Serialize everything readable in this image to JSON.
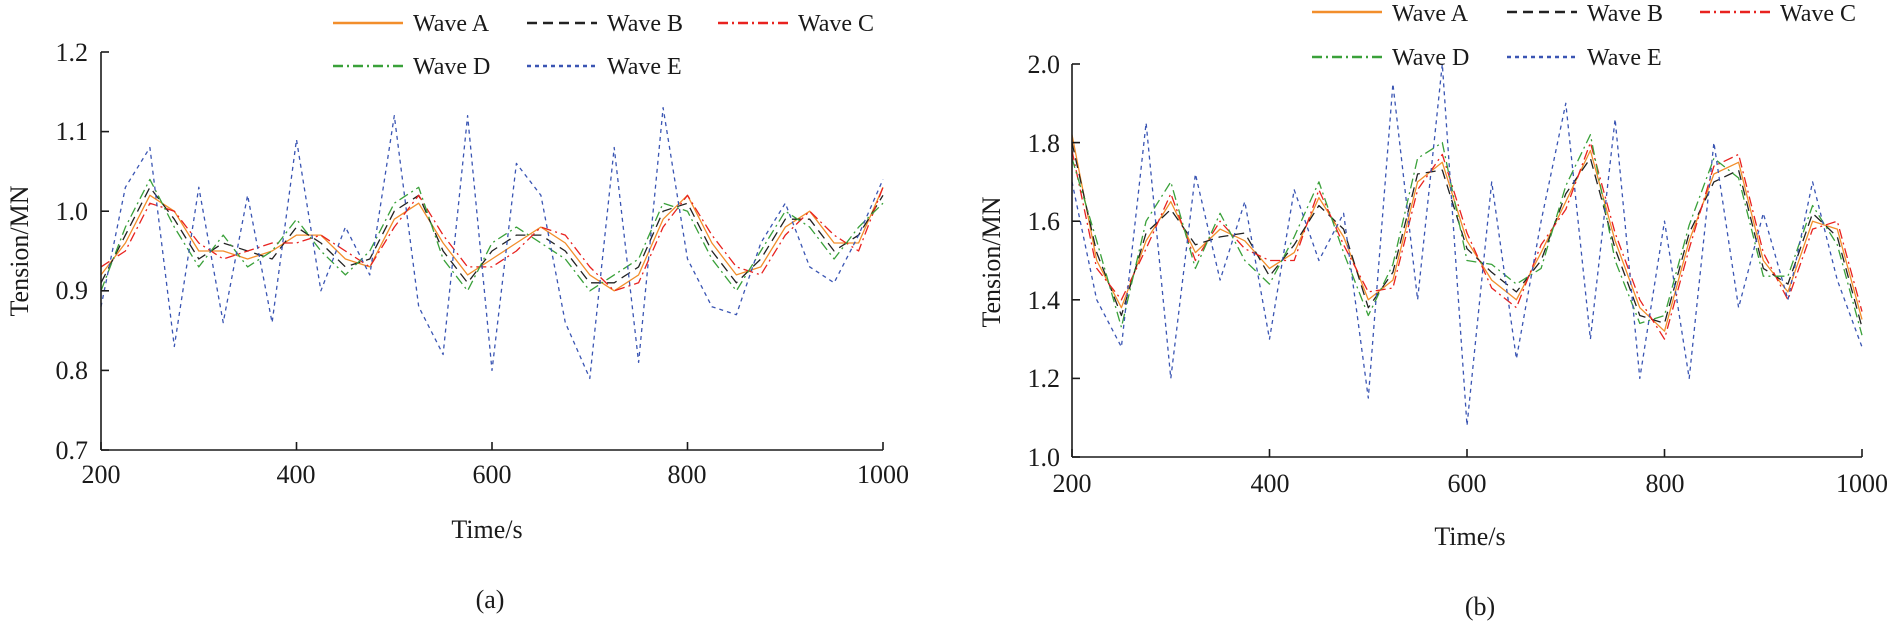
{
  "figure": {
    "legend_labels": [
      "Wave A",
      "Wave B",
      "Wave C",
      "Wave D",
      "Wave E"
    ],
    "series_colors": [
      "#f28e2b",
      "#222222",
      "#e8221f",
      "#3aa13a",
      "#3a55b3"
    ],
    "series_dash": [
      "",
      "10,6",
      "10,4,2,4",
      "10,4,2,4",
      "4,4"
    ]
  },
  "chart_data": [
    {
      "type": "line",
      "caption": "(a)",
      "title": "",
      "xlabel": "Time/s",
      "ylabel": "Tension/MN",
      "xlim": [
        200,
        1000
      ],
      "ylim": [
        0.7,
        1.2
      ],
      "xticks": [
        200,
        400,
        600,
        800,
        1000
      ],
      "yticks": [
        0.7,
        0.8,
        0.9,
        1.0,
        1.1,
        1.2
      ],
      "ytick_labels": [
        "0.7",
        "0.8",
        "0.9",
        "1.0",
        "1.1",
        "1.2"
      ],
      "legend": "top-right",
      "series": [
        {
          "name": "Wave A",
          "x": [
            200,
            225,
            250,
            275,
            300,
            325,
            350,
            375,
            400,
            425,
            450,
            475,
            500,
            525,
            550,
            575,
            600,
            625,
            650,
            675,
            700,
            725,
            750,
            775,
            800,
            825,
            850,
            875,
            900,
            925,
            950,
            975,
            1000
          ],
          "values": [
            0.92,
            0.96,
            1.02,
            1.0,
            0.95,
            0.95,
            0.94,
            0.95,
            0.97,
            0.97,
            0.94,
            0.93,
            0.99,
            1.01,
            0.96,
            0.92,
            0.94,
            0.96,
            0.98,
            0.96,
            0.92,
            0.9,
            0.92,
            0.99,
            1.02,
            0.96,
            0.92,
            0.93,
            0.98,
            1.0,
            0.96,
            0.96,
            1.03
          ]
        },
        {
          "name": "Wave B",
          "x": [
            200,
            225,
            250,
            275,
            300,
            325,
            350,
            375,
            400,
            425,
            450,
            475,
            500,
            525,
            550,
            575,
            600,
            625,
            650,
            675,
            700,
            725,
            750,
            775,
            800,
            825,
            850,
            875,
            900,
            925,
            950,
            975,
            1000
          ],
          "values": [
            0.91,
            0.97,
            1.03,
            0.99,
            0.94,
            0.96,
            0.95,
            0.94,
            0.98,
            0.96,
            0.93,
            0.94,
            1.0,
            1.02,
            0.95,
            0.91,
            0.95,
            0.97,
            0.97,
            0.95,
            0.91,
            0.91,
            0.93,
            1.0,
            1.01,
            0.95,
            0.91,
            0.94,
            0.99,
            0.99,
            0.95,
            0.97,
            1.02
          ]
        },
        {
          "name": "Wave C",
          "x": [
            200,
            225,
            250,
            275,
            300,
            325,
            350,
            375,
            400,
            425,
            450,
            475,
            500,
            525,
            550,
            575,
            600,
            625,
            650,
            675,
            700,
            725,
            750,
            775,
            800,
            825,
            850,
            875,
            900,
            925,
            950,
            975,
            1000
          ],
          "values": [
            0.93,
            0.95,
            1.01,
            1.0,
            0.96,
            0.94,
            0.95,
            0.96,
            0.96,
            0.97,
            0.95,
            0.93,
            0.98,
            1.02,
            0.97,
            0.93,
            0.93,
            0.95,
            0.98,
            0.97,
            0.93,
            0.9,
            0.91,
            0.98,
            1.02,
            0.97,
            0.93,
            0.92,
            0.97,
            1.0,
            0.97,
            0.95,
            1.03
          ]
        },
        {
          "name": "Wave D",
          "x": [
            200,
            225,
            250,
            275,
            300,
            325,
            350,
            375,
            400,
            425,
            450,
            475,
            500,
            525,
            550,
            575,
            600,
            625,
            650,
            675,
            700,
            725,
            750,
            775,
            800,
            825,
            850,
            875,
            900,
            925,
            950,
            975,
            1000
          ],
          "values": [
            0.9,
            0.98,
            1.04,
            0.98,
            0.93,
            0.97,
            0.93,
            0.95,
            0.99,
            0.95,
            0.92,
            0.95,
            1.01,
            1.03,
            0.94,
            0.9,
            0.96,
            0.98,
            0.96,
            0.94,
            0.9,
            0.92,
            0.94,
            1.01,
            1.0,
            0.94,
            0.9,
            0.95,
            1.0,
            0.98,
            0.94,
            0.98,
            1.01
          ]
        },
        {
          "name": "Wave E",
          "x": [
            200,
            225,
            250,
            275,
            300,
            325,
            350,
            375,
            400,
            425,
            450,
            475,
            500,
            525,
            550,
            575,
            600,
            625,
            650,
            675,
            700,
            725,
            750,
            775,
            800,
            825,
            850,
            875,
            900,
            925,
            950,
            975,
            1000
          ],
          "values": [
            0.88,
            1.03,
            1.08,
            0.83,
            1.03,
            0.86,
            1.02,
            0.86,
            1.09,
            0.9,
            0.98,
            0.92,
            1.12,
            0.88,
            0.82,
            1.12,
            0.8,
            1.06,
            1.02,
            0.86,
            0.79,
            1.08,
            0.81,
            1.13,
            0.94,
            0.88,
            0.87,
            0.96,
            1.01,
            0.93,
            0.91,
            0.97,
            1.04
          ]
        }
      ]
    },
    {
      "type": "line",
      "caption": "(b)",
      "title": "",
      "xlabel": "Time/s",
      "ylabel": "Tension/MN",
      "xlim": [
        200,
        1000
      ],
      "ylim": [
        1.0,
        2.0
      ],
      "xticks": [
        200,
        400,
        600,
        800,
        1000
      ],
      "yticks": [
        1.0,
        1.2,
        1.4,
        1.6,
        1.8,
        2.0
      ],
      "ytick_labels": [
        "1.0",
        "1.2",
        "1.4",
        "1.6",
        "1.8",
        "2.0"
      ],
      "legend": "top-right",
      "series": [
        {
          "name": "Wave A",
          "x": [
            200,
            225,
            250,
            275,
            300,
            325,
            350,
            375,
            400,
            425,
            450,
            475,
            500,
            525,
            550,
            575,
            600,
            625,
            650,
            675,
            700,
            725,
            750,
            775,
            800,
            825,
            850,
            875,
            900,
            925,
            950,
            975,
            1000
          ],
          "values": [
            1.82,
            1.5,
            1.38,
            1.55,
            1.65,
            1.52,
            1.58,
            1.55,
            1.48,
            1.52,
            1.66,
            1.56,
            1.4,
            1.45,
            1.7,
            1.75,
            1.55,
            1.45,
            1.4,
            1.52,
            1.65,
            1.78,
            1.55,
            1.38,
            1.32,
            1.55,
            1.72,
            1.75,
            1.5,
            1.42,
            1.6,
            1.58,
            1.35
          ]
        },
        {
          "name": "Wave B",
          "x": [
            200,
            225,
            250,
            275,
            300,
            325,
            350,
            375,
            400,
            425,
            450,
            475,
            500,
            525,
            550,
            575,
            600,
            625,
            650,
            675,
            700,
            725,
            750,
            775,
            800,
            825,
            850,
            875,
            900,
            925,
            950,
            975,
            1000
          ],
          "values": [
            1.8,
            1.52,
            1.36,
            1.57,
            1.63,
            1.54,
            1.56,
            1.57,
            1.46,
            1.54,
            1.64,
            1.58,
            1.38,
            1.47,
            1.72,
            1.73,
            1.53,
            1.47,
            1.42,
            1.5,
            1.67,
            1.76,
            1.53,
            1.36,
            1.34,
            1.57,
            1.7,
            1.73,
            1.48,
            1.44,
            1.62,
            1.56,
            1.33
          ]
        },
        {
          "name": "Wave C",
          "x": [
            200,
            225,
            250,
            275,
            300,
            325,
            350,
            375,
            400,
            425,
            450,
            475,
            500,
            525,
            550,
            575,
            600,
            625,
            650,
            675,
            700,
            725,
            750,
            775,
            800,
            825,
            850,
            875,
            900,
            925,
            950,
            975,
            1000
          ],
          "values": [
            1.78,
            1.48,
            1.4,
            1.53,
            1.67,
            1.5,
            1.6,
            1.53,
            1.5,
            1.5,
            1.68,
            1.54,
            1.42,
            1.43,
            1.68,
            1.77,
            1.57,
            1.43,
            1.38,
            1.54,
            1.63,
            1.8,
            1.57,
            1.4,
            1.3,
            1.53,
            1.74,
            1.77,
            1.52,
            1.4,
            1.58,
            1.6,
            1.37
          ]
        },
        {
          "name": "Wave D",
          "x": [
            200,
            225,
            250,
            275,
            300,
            325,
            350,
            375,
            400,
            425,
            450,
            475,
            500,
            525,
            550,
            575,
            600,
            625,
            650,
            675,
            700,
            725,
            750,
            775,
            800,
            825,
            850,
            875,
            900,
            925,
            950,
            975,
            1000
          ],
          "values": [
            1.76,
            1.55,
            1.33,
            1.6,
            1.7,
            1.48,
            1.62,
            1.5,
            1.44,
            1.56,
            1.7,
            1.52,
            1.36,
            1.49,
            1.76,
            1.8,
            1.5,
            1.49,
            1.44,
            1.48,
            1.69,
            1.82,
            1.5,
            1.34,
            1.36,
            1.59,
            1.76,
            1.71,
            1.46,
            1.46,
            1.64,
            1.54,
            1.31
          ]
        },
        {
          "name": "Wave E",
          "x": [
            200,
            225,
            250,
            275,
            300,
            325,
            350,
            375,
            400,
            425,
            450,
            475,
            500,
            525,
            550,
            575,
            600,
            625,
            650,
            675,
            700,
            725,
            750,
            775,
            800,
            825,
            850,
            875,
            900,
            925,
            950,
            975,
            1000
          ],
          "values": [
            1.7,
            1.4,
            1.28,
            1.85,
            1.2,
            1.72,
            1.45,
            1.65,
            1.3,
            1.68,
            1.5,
            1.62,
            1.15,
            1.95,
            1.4,
            2.0,
            1.08,
            1.7,
            1.25,
            1.6,
            1.9,
            1.3,
            1.86,
            1.2,
            1.6,
            1.2,
            1.8,
            1.38,
            1.62,
            1.4,
            1.7,
            1.45,
            1.28
          ]
        }
      ]
    }
  ]
}
